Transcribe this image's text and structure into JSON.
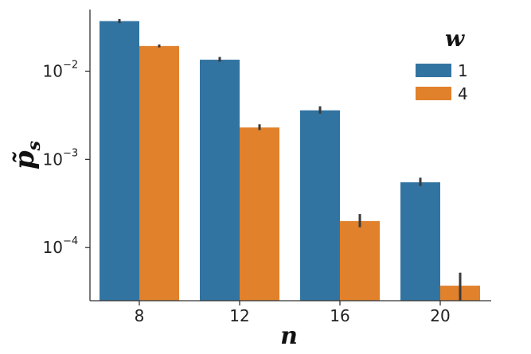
{
  "chart_data": {
    "type": "bar",
    "xlabel": "n",
    "ylabel": "p̃",
    "ylabel_sub": "s",
    "ylog": true,
    "ylim": [
      2.5e-05,
      0.05
    ],
    "yticks": [
      {
        "base": "10",
        "exp": "-2",
        "value": 0.01
      },
      {
        "base": "10",
        "exp": "-3",
        "value": 0.001
      },
      {
        "base": "10",
        "exp": "-4",
        "value": 0.0001
      }
    ],
    "categories": [
      "8",
      "12",
      "16",
      "20"
    ],
    "legend_title": "w",
    "legend_position": "top-right",
    "grid": false,
    "series": [
      {
        "name": "1",
        "color": "#3274a1",
        "values": [
          0.037,
          0.0135,
          0.0036,
          0.00055
        ],
        "err_low": [
          0.035,
          0.0128,
          0.0033,
          0.0005
        ],
        "err_high": [
          0.039,
          0.0145,
          0.004,
          0.00062
        ]
      },
      {
        "name": "4",
        "color": "#e1812c",
        "values": [
          0.0193,
          0.0023,
          0.0002,
          3.7e-05
        ],
        "err_low": [
          0.0186,
          0.00215,
          0.00017,
          2.5e-05
        ],
        "err_high": [
          0.0201,
          0.0025,
          0.00024,
          5.2e-05
        ]
      }
    ]
  }
}
